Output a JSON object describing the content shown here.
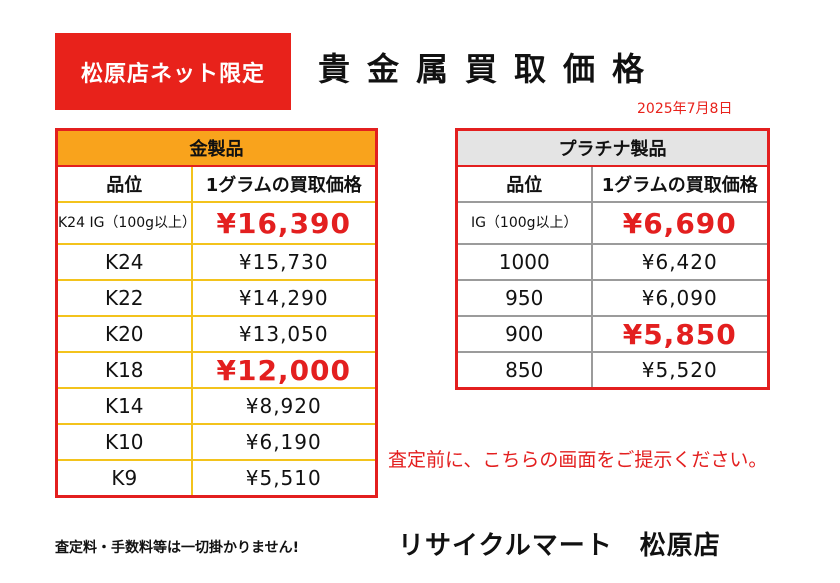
{
  "badge": "松原店ネット限定",
  "title": "貴金属買取価格",
  "date": "2025年7月8日",
  "gold_table": {
    "header": "金製品",
    "col_grade": "品位",
    "col_price": "1グラムの買取価格",
    "rows": [
      {
        "grade": "K24 IG（100g以上）",
        "price": "¥16,390",
        "highlight": true
      },
      {
        "grade": "K24",
        "price": "¥15,730",
        "highlight": false
      },
      {
        "grade": "K22",
        "price": "¥14,290",
        "highlight": false
      },
      {
        "grade": "K20",
        "price": "¥13,050",
        "highlight": false
      },
      {
        "grade": "K18",
        "price": "¥12,000",
        "highlight": true
      },
      {
        "grade": "K14",
        "price": "¥8,920",
        "highlight": false
      },
      {
        "grade": "K10",
        "price": "¥6,190",
        "highlight": false
      },
      {
        "grade": "K9",
        "price": "¥5,510",
        "highlight": false
      }
    ]
  },
  "platinum_table": {
    "header": "プラチナ製品",
    "col_grade": "品位",
    "col_price": "1グラムの買取価格",
    "rows": [
      {
        "grade": "IG（100g以上）",
        "price": "¥6,690",
        "highlight": true
      },
      {
        "grade": "1000",
        "price": "¥6,420",
        "highlight": false
      },
      {
        "grade": "950",
        "price": "¥6,090",
        "highlight": false
      },
      {
        "grade": "900",
        "price": "¥5,850",
        "highlight": true
      },
      {
        "grade": "850",
        "price": "¥5,520",
        "highlight": false
      }
    ]
  },
  "notice": "査定前に、こちらの画面をご提示ください。",
  "fees_note": "査定料・手数料等は一切掛かりません!",
  "shop_name": "リサイクルマート　松原店",
  "colors": {
    "accent_red": "#e31f1f",
    "gold_header": "#f9a31c",
    "platinum_header": "#e4e4e4"
  }
}
